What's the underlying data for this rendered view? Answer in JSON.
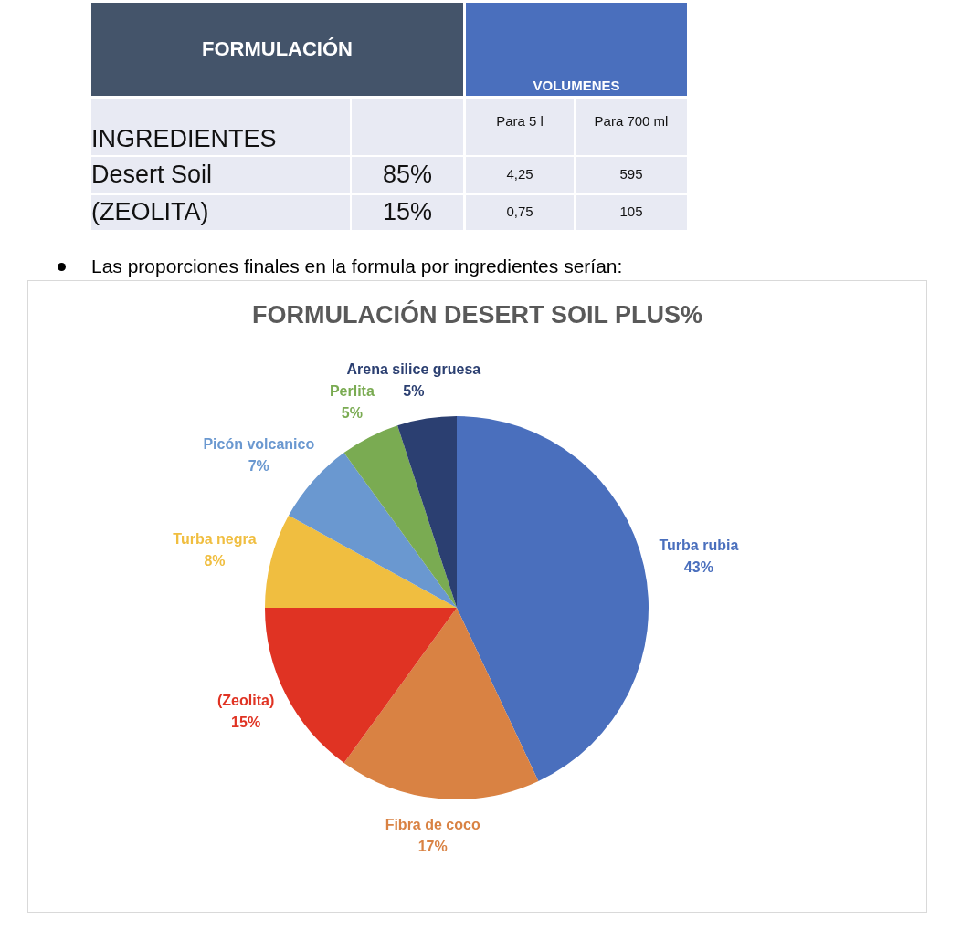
{
  "chart_data": [
    {
      "type": "other",
      "title": "FORMULACIÓN",
      "annotations": [
        "VOLUMENES",
        "INGREDIENTES",
        "Para 5 l",
        "Para 700 ml",
        "Desert Soil",
        "85%",
        "4,25",
        "595",
        "(ZEOLITA)",
        "15%",
        "0,75",
        "105",
        "Las proporciones finales en la formula por ingredientes serían:"
      ]
    },
    {
      "type": "pie",
      "title": "FORMULACIÓN DESERT SOIL PLUS%",
      "categories": [
        "Turba rubia",
        "Fibra de coco",
        "(Zeolita)",
        "Turba negra",
        "Picón volcanico",
        "Perlita",
        "Arena silice gruesa"
      ],
      "values": [
        43,
        17,
        15,
        8,
        7,
        5,
        5
      ],
      "value_labels": [
        "43%",
        "17%",
        "15%",
        "8%",
        "7%",
        "5%",
        "5%"
      ],
      "colors": [
        "#4a6fbd",
        "#d98243",
        "#e03323",
        "#f0be40",
        "#6a98d0",
        "#7aab52",
        "#2b3f71"
      ]
    }
  ]
}
